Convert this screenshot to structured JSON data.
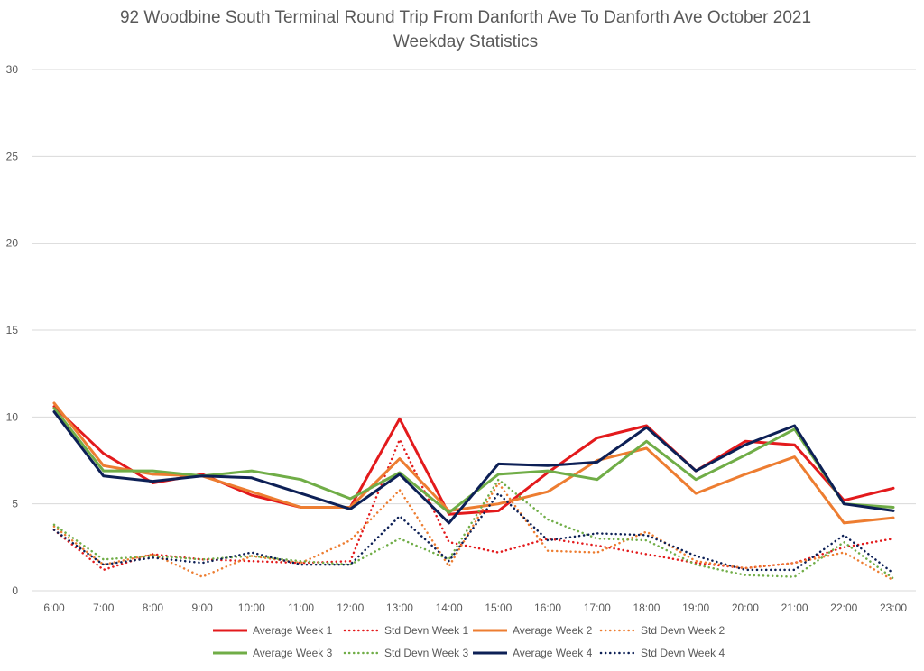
{
  "chart_data": {
    "type": "line",
    "title": "92 Woodbine South Terminal Round Trip From Danforth Ave To Danforth Ave October 2021",
    "subtitle": "Weekday Statistics",
    "xlabel": "",
    "ylabel": "",
    "ylim": [
      0,
      30
    ],
    "yticks": [
      0,
      5,
      10,
      15,
      20,
      25,
      30
    ],
    "grid": true,
    "legend_position": "bottom",
    "categories": [
      "6:00",
      "7:00",
      "8:00",
      "9:00",
      "10:00",
      "11:00",
      "12:00",
      "13:00",
      "14:00",
      "15:00",
      "16:00",
      "17:00",
      "18:00",
      "19:00",
      "20:00",
      "21:00",
      "22:00",
      "23:00"
    ],
    "series": [
      {
        "name": "Average Week 1",
        "color": "#e31a1c",
        "style": "solid",
        "values": [
          10.6,
          7.9,
          6.2,
          6.7,
          5.5,
          4.8,
          4.8,
          9.9,
          4.4,
          4.6,
          6.8,
          8.8,
          9.5,
          6.9,
          8.6,
          8.4,
          5.2,
          5.9
        ]
      },
      {
        "name": "Std Devn Week 1",
        "color": "#e31a1c",
        "style": "dotted",
        "values": [
          3.5,
          1.2,
          2.1,
          1.8,
          1.7,
          1.6,
          1.7,
          8.7,
          2.8,
          2.2,
          3.0,
          2.6,
          2.1,
          1.6,
          1.3,
          1.6,
          2.5,
          3.0
        ]
      },
      {
        "name": "Average Week 2",
        "color": "#ed7d31",
        "style": "solid",
        "values": [
          10.8,
          7.2,
          6.7,
          6.6,
          5.7,
          4.8,
          4.8,
          7.6,
          4.6,
          5.0,
          5.7,
          7.5,
          8.2,
          5.6,
          6.7,
          7.7,
          3.9,
          4.2
        ]
      },
      {
        "name": "Std Devn Week 2",
        "color": "#ed7d31",
        "style": "dotted",
        "values": [
          3.7,
          1.5,
          2.1,
          0.8,
          2.0,
          1.6,
          2.9,
          5.8,
          1.4,
          6.2,
          2.3,
          2.2,
          3.4,
          1.7,
          1.3,
          1.6,
          2.2,
          0.6
        ]
      },
      {
        "name": "Average Week 3",
        "color": "#70ad47",
        "style": "solid",
        "values": [
          10.5,
          6.9,
          6.9,
          6.6,
          6.9,
          6.4,
          5.3,
          6.8,
          4.5,
          6.7,
          6.9,
          6.4,
          8.6,
          6.4,
          7.8,
          9.3,
          5.0,
          4.8
        ]
      },
      {
        "name": "Std Devn Week 3",
        "color": "#70ad47",
        "style": "dotted",
        "values": [
          3.8,
          1.8,
          2.0,
          1.8,
          2.0,
          1.7,
          1.5,
          3.0,
          1.8,
          6.4,
          4.1,
          3.0,
          2.9,
          1.5,
          0.9,
          0.8,
          2.8,
          0.7
        ]
      },
      {
        "name": "Average Week 4",
        "color": "#0d2056",
        "style": "solid",
        "values": [
          10.3,
          6.6,
          6.3,
          6.6,
          6.5,
          5.6,
          4.7,
          6.7,
          3.9,
          7.3,
          7.2,
          7.4,
          9.4,
          6.9,
          8.4,
          9.5,
          5.0,
          4.6
        ]
      },
      {
        "name": "Std Devn Week 4",
        "color": "#0d2056",
        "style": "dotted",
        "values": [
          3.5,
          1.5,
          1.9,
          1.6,
          2.2,
          1.5,
          1.5,
          4.3,
          1.7,
          5.6,
          2.9,
          3.3,
          3.2,
          2.0,
          1.2,
          1.2,
          3.2,
          1.0
        ]
      }
    ]
  }
}
